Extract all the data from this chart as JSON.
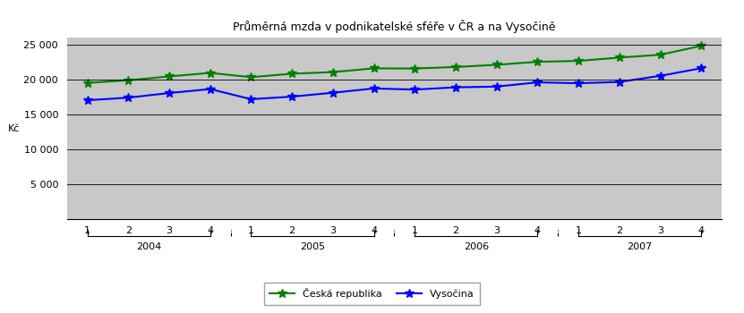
{
  "title": "Průměrná mzda v podnikatelské sféře v ČR a na Vysočině",
  "ylabel": "Kč",
  "cr_values": [
    19514,
    19884,
    20437,
    20938,
    20326,
    20826,
    21053,
    21590,
    21568,
    21788,
    22102,
    22529,
    22658,
    23131,
    23539,
    24812
  ],
  "vy_values": [
    17022,
    17394,
    18057,
    18621,
    17174,
    17540,
    18099,
    18709,
    18552,
    18873,
    18979,
    19588,
    19459,
    19645,
    20521,
    21607
  ],
  "cr_color": "#008000",
  "vy_color": "#0000FF",
  "bg_color": "#C8C8C8",
  "grid_color": "#000000",
  "ylim": [
    0,
    26000
  ],
  "yticks": [
    0,
    5000,
    10000,
    15000,
    20000,
    25000
  ],
  "ytick_labels": [
    "",
    "5 000",
    "10 000",
    "15 000",
    "20 000",
    "25 000"
  ],
  "years": [
    "2004",
    "2005",
    "2006",
    "2007"
  ],
  "quarter_labels": [
    "1",
    "2",
    "3",
    "4",
    "1",
    "2",
    "3",
    "4",
    "1",
    "2",
    "3",
    "4",
    "1",
    "2",
    "3",
    "4"
  ],
  "legend_cr": "Česká republika",
  "legend_vy": "Vysočina",
  "fig_bg": "#FFFFFF",
  "title_fontsize": 9,
  "tick_fontsize": 8
}
